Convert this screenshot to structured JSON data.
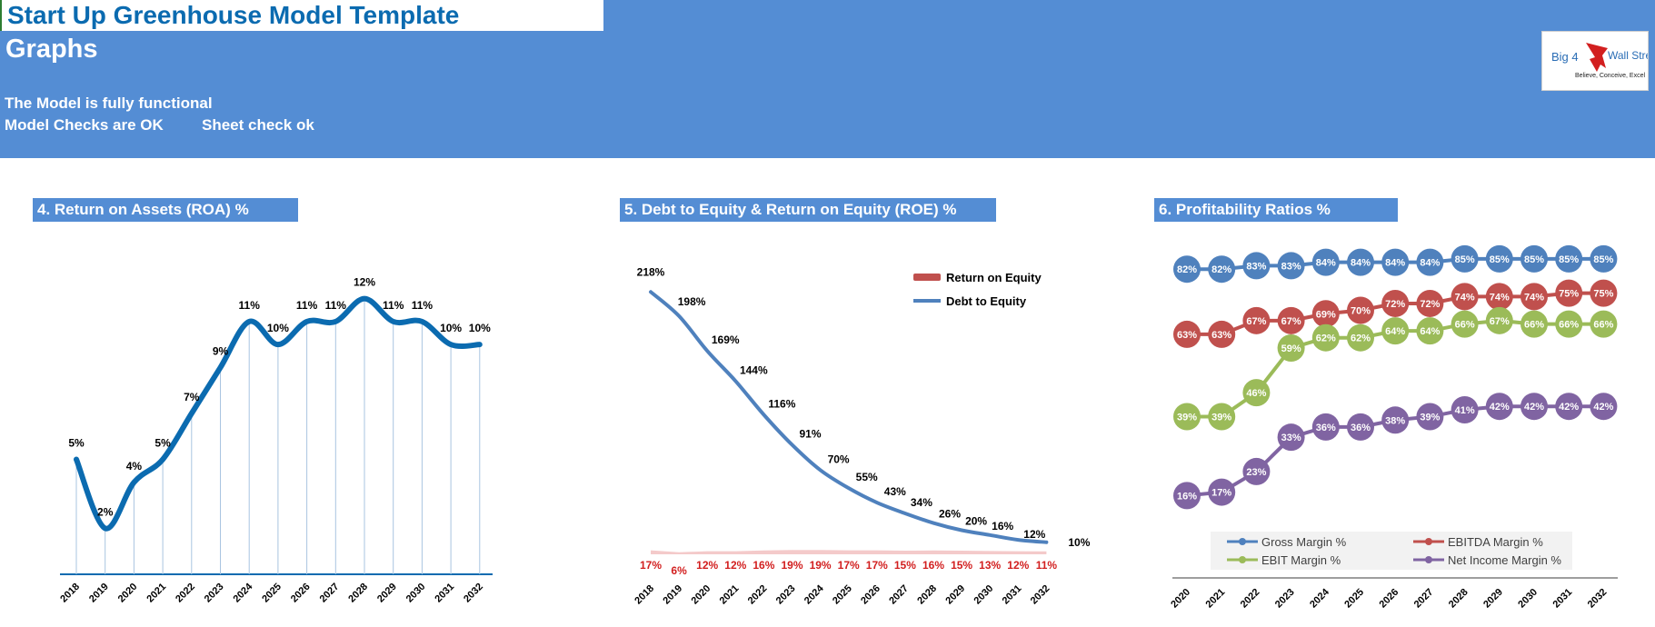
{
  "header": {
    "title": "Start Up Greenhouse Model Template",
    "subtitle": "Graphs",
    "status_functional": "The Model is fully functional",
    "status_checks": "Model Checks are OK",
    "status_sheet": "Sheet check ok",
    "logo": {
      "main": "Big 4",
      "side": "Wall Street",
      "tagline": "Believe, Conceive, Excel"
    }
  },
  "charts": {
    "roa": {
      "title": "4. Return on Assets (ROA) %"
    },
    "de_roe": {
      "title": "5. Debt to Equity & Return on Equity (ROE) %"
    },
    "profit": {
      "title": "6. Profitability Ratios %"
    }
  },
  "colors": {
    "banner": "#548dd4",
    "roa_line": "#0b6bb0",
    "de_line": "#4f81bd",
    "roe": "#c00000",
    "gross": "#4f81bd",
    "ebitda": "#c0504d",
    "ebit": "#9bbb59",
    "net": "#8064a2"
  },
  "chart_data": [
    {
      "type": "line",
      "title": "4. Return on Assets (ROA) %",
      "x": [
        "2018",
        "2019",
        "2020",
        "2021",
        "2022",
        "2023",
        "2024",
        "2025",
        "2026",
        "2027",
        "2028",
        "2029",
        "2030",
        "2031",
        "2032"
      ],
      "series": [
        {
          "values": [
            5,
            2,
            4,
            5,
            7,
            9,
            11,
            10,
            11,
            11,
            12,
            11,
            11,
            10,
            10
          ]
        }
      ],
      "data_labels": [
        "5%",
        "2%",
        "4%",
        "5%",
        "7%",
        "9%",
        "11%",
        "10%",
        "11%",
        "11%",
        "12%",
        "11%",
        "11%",
        "10%",
        "10%"
      ],
      "ylim": [
        0,
        14
      ]
    },
    {
      "type": "line",
      "title": "5. Debt to Equity & Return on Equity (ROE) %",
      "x": [
        "2018",
        "2019",
        "2020",
        "2021",
        "2022",
        "2023",
        "2024",
        "2025",
        "2026",
        "2027",
        "2028",
        "2029",
        "2030",
        "2031",
        "2032"
      ],
      "series": [
        {
          "name": "Debt to Equity",
          "values": [
            218,
            198,
            169,
            144,
            116,
            91,
            70,
            55,
            43,
            34,
            26,
            20,
            16,
            12,
            10
          ],
          "labels": [
            "218%",
            "198%",
            "169%",
            "144%",
            "116%",
            "91%",
            "70%",
            "55%",
            "43%",
            "34%",
            "26%",
            "20%",
            "16%",
            "12%",
            "10%"
          ]
        },
        {
          "name": "Return on Equity",
          "values": [
            17,
            6,
            12,
            12,
            16,
            19,
            19,
            17,
            17,
            15,
            16,
            15,
            13,
            12,
            11
          ],
          "labels": [
            "17%",
            "6%",
            "12%",
            "12%",
            "16%",
            "19%",
            "19%",
            "17%",
            "17%",
            "15%",
            "16%",
            "15%",
            "13%",
            "12%",
            "11%"
          ]
        }
      ],
      "legend": [
        "Return on Equity",
        "Debt to Equity"
      ],
      "legend_position": "top-right",
      "ylim": [
        0,
        225
      ]
    },
    {
      "type": "line",
      "title": "6. Profitability Ratios %",
      "x": [
        "2020",
        "2021",
        "2022",
        "2023",
        "2024",
        "2025",
        "2026",
        "2027",
        "2028",
        "2029",
        "2030",
        "2031",
        "2032"
      ],
      "series": [
        {
          "name": "Gross Margin %",
          "values": [
            82,
            82,
            83,
            83,
            84,
            84,
            84,
            84,
            85,
            85,
            85,
            85,
            85
          ]
        },
        {
          "name": "EBITDA Margin %",
          "values": [
            63,
            63,
            67,
            67,
            69,
            70,
            72,
            72,
            74,
            74,
            74,
            75,
            75
          ]
        },
        {
          "name": "EBIT Margin %",
          "values": [
            39,
            39,
            46,
            59,
            62,
            62,
            64,
            64,
            66,
            67,
            66,
            66,
            66
          ]
        },
        {
          "name": "Net Income Margin %",
          "values": [
            16,
            17,
            23,
            33,
            36,
            36,
            38,
            39,
            41,
            42,
            42,
            42,
            42
          ]
        }
      ],
      "legend_position": "bottom",
      "ylim": [
        10,
        90
      ]
    }
  ]
}
